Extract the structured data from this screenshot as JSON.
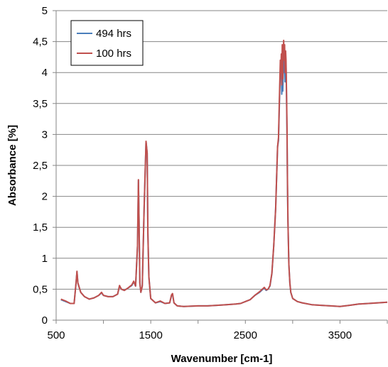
{
  "chart_data": {
    "type": "line",
    "title": "",
    "xlabel": "Wavenumber [cm-1]",
    "ylabel": "Absorbance [%]",
    "xlim": [
      500,
      4000
    ],
    "ylim": [
      0,
      5
    ],
    "x_ticks": [
      500,
      1500,
      2500,
      3500
    ],
    "x_tick_labels": [
      "500",
      "1500",
      "2500",
      "3500"
    ],
    "y_ticks": [
      0,
      0.5,
      1,
      1.5,
      2,
      2.5,
      3,
      3.5,
      4,
      4.5,
      5
    ],
    "y_tick_labels": [
      "0",
      "0,5",
      "1",
      "1,5",
      "2",
      "2,5",
      "3",
      "3,5",
      "4",
      "4,5",
      "5"
    ],
    "grid": "horizontal",
    "legend_position": "top-left",
    "series": [
      {
        "name": "494 hrs",
        "color": "#4a7ebb",
        "x": [
          550,
          600,
          650,
          690,
          710,
          720,
          730,
          760,
          800,
          850,
          900,
          950,
          980,
          1000,
          1050,
          1100,
          1150,
          1170,
          1190,
          1220,
          1260,
          1300,
          1320,
          1340,
          1360,
          1370,
          1377,
          1385,
          1395,
          1410,
          1430,
          1450,
          1462,
          1470,
          1480,
          1500,
          1550,
          1600,
          1650,
          1700,
          1720,
          1730,
          1745,
          1780,
          1850,
          2000,
          2100,
          2200,
          2300,
          2400,
          2450,
          2500,
          2550,
          2600,
          2650,
          2700,
          2720,
          2740,
          2760,
          2780,
          2800,
          2820,
          2840,
          2850,
          2860,
          2870,
          2875,
          2880,
          2885,
          2890,
          2895,
          2900,
          2905,
          2910,
          2915,
          2920,
          2925,
          2930,
          2935,
          2940,
          2945,
          2950,
          2960,
          2970,
          2980,
          3000,
          3050,
          3100,
          3200,
          3300,
          3400,
          3500,
          3600,
          3700,
          3800,
          3900,
          4000
        ],
        "y": [
          0.33,
          0.3,
          0.27,
          0.27,
          0.6,
          0.78,
          0.6,
          0.45,
          0.38,
          0.34,
          0.36,
          0.4,
          0.44,
          0.4,
          0.38,
          0.38,
          0.42,
          0.55,
          0.5,
          0.48,
          0.52,
          0.56,
          0.62,
          0.55,
          1.2,
          2.26,
          1.5,
          0.6,
          0.45,
          0.55,
          1.8,
          2.88,
          2.7,
          1.4,
          0.7,
          0.35,
          0.28,
          0.3,
          0.27,
          0.28,
          0.4,
          0.42,
          0.28,
          0.23,
          0.22,
          0.23,
          0.23,
          0.24,
          0.25,
          0.26,
          0.27,
          0.3,
          0.33,
          0.4,
          0.45,
          0.52,
          0.48,
          0.5,
          0.55,
          0.75,
          1.2,
          1.8,
          2.8,
          2.9,
          3.5,
          4.05,
          3.9,
          4.1,
          3.65,
          4.2,
          3.7,
          3.95,
          4.2,
          4.0,
          4.25,
          3.85,
          4.2,
          4.1,
          3.6,
          3.0,
          2.2,
          1.6,
          0.9,
          0.6,
          0.45,
          0.35,
          0.3,
          0.28,
          0.25,
          0.24,
          0.23,
          0.22,
          0.24,
          0.26,
          0.27,
          0.28,
          0.29
        ]
      },
      {
        "name": "100 hrs",
        "color": "#c0504d",
        "x": [
          550,
          600,
          650,
          690,
          710,
          720,
          730,
          760,
          800,
          850,
          900,
          950,
          980,
          1000,
          1050,
          1100,
          1150,
          1170,
          1190,
          1220,
          1260,
          1300,
          1320,
          1340,
          1360,
          1370,
          1377,
          1385,
          1395,
          1410,
          1430,
          1450,
          1462,
          1470,
          1480,
          1500,
          1550,
          1600,
          1650,
          1700,
          1720,
          1730,
          1745,
          1780,
          1850,
          2000,
          2100,
          2200,
          2300,
          2400,
          2450,
          2500,
          2550,
          2600,
          2650,
          2700,
          2720,
          2740,
          2760,
          2780,
          2800,
          2820,
          2840,
          2850,
          2860,
          2870,
          2875,
          2880,
          2885,
          2890,
          2895,
          2900,
          2905,
          2910,
          2915,
          2920,
          2925,
          2930,
          2935,
          2940,
          2945,
          2950,
          2960,
          2970,
          2980,
          3000,
          3050,
          3100,
          3200,
          3300,
          3400,
          3500,
          3600,
          3700,
          3800,
          3900,
          4000
        ],
        "y": [
          0.34,
          0.31,
          0.27,
          0.27,
          0.6,
          0.79,
          0.6,
          0.45,
          0.38,
          0.34,
          0.36,
          0.4,
          0.45,
          0.4,
          0.38,
          0.38,
          0.42,
          0.56,
          0.5,
          0.48,
          0.52,
          0.57,
          0.63,
          0.55,
          1.2,
          2.27,
          1.5,
          0.6,
          0.45,
          0.55,
          1.8,
          2.89,
          2.7,
          1.4,
          0.7,
          0.35,
          0.28,
          0.31,
          0.27,
          0.28,
          0.41,
          0.43,
          0.28,
          0.23,
          0.22,
          0.23,
          0.23,
          0.24,
          0.25,
          0.26,
          0.27,
          0.3,
          0.33,
          0.4,
          0.46,
          0.53,
          0.49,
          0.5,
          0.56,
          0.76,
          1.2,
          1.8,
          2.8,
          2.95,
          3.6,
          4.2,
          4.0,
          4.3,
          3.8,
          4.45,
          3.9,
          4.3,
          4.52,
          4.2,
          4.45,
          4.0,
          4.35,
          4.2,
          3.7,
          3.1,
          2.3,
          1.6,
          0.9,
          0.6,
          0.45,
          0.35,
          0.3,
          0.28,
          0.25,
          0.24,
          0.23,
          0.22,
          0.24,
          0.26,
          0.27,
          0.28,
          0.29
        ]
      }
    ]
  }
}
